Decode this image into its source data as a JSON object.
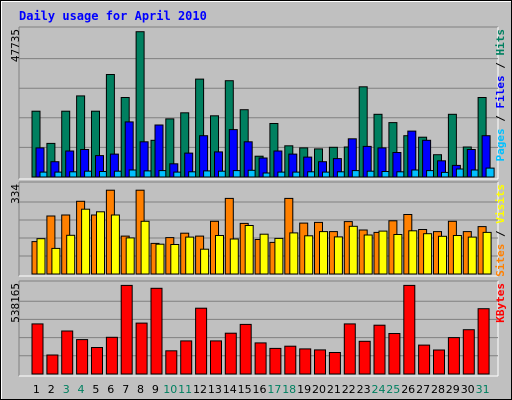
{
  "chart_data": {
    "type": "bar",
    "title": "Daily usage for April 2010",
    "days": [
      "1",
      "2",
      "3",
      "4",
      "5",
      "6",
      "7",
      "8",
      "9",
      "10",
      "11",
      "12",
      "13",
      "14",
      "15",
      "16",
      "17",
      "18",
      "19",
      "20",
      "21",
      "22",
      "23",
      "24",
      "25",
      "26",
      "27",
      "28",
      "29",
      "30",
      "31"
    ],
    "weekend_days": [
      "3",
      "4",
      "10",
      "11",
      "17",
      "18",
      "24",
      "25",
      "31"
    ],
    "panels": [
      {
        "id": "hits",
        "max_label": "47735",
        "ymax": 47735,
        "legend": [
          "Pages",
          "/",
          "Files",
          "/",
          "Hits"
        ],
        "series": [
          {
            "name": "Hits",
            "color": "#008060",
            "values": [
              21500,
              11000,
              21500,
              26500,
              21500,
              33500,
              26000,
              47500,
              12000,
              19000,
              21000,
              32000,
              20000,
              31500,
              22000,
              6800,
              17500,
              10200,
              9500,
              9200,
              9700,
              9800,
              29500,
              20500,
              17800,
              13500,
              13000,
              7300,
              20500,
              9800,
              26000
            ]
          },
          {
            "name": "Files",
            "color": "#0000ff",
            "values": [
              9500,
              5000,
              8500,
              9000,
              7000,
              7500,
              18000,
              11500,
              17000,
              4300,
              7800,
              13500,
              8200,
              15500,
              11500,
              6200,
              8500,
              7500,
              6500,
              5000,
              6000,
              12500,
              10000,
              9500,
              8000,
              15000,
              12000,
              5300,
              3800,
              9000,
              13500
            ]
          },
          {
            "name": "Pages",
            "color": "#00c0ff",
            "values": [
              1600,
              1600,
              1700,
              1900,
              1800,
              1900,
              2300,
              2000,
              2100,
              1600,
              1700,
              2000,
              1900,
              2100,
              2200,
              1300,
              1600,
              1600,
              1700,
              1600,
              1700,
              2100,
              1900,
              1800,
              1700,
              2300,
              2100,
              1500,
              2600,
              2300,
              2900
            ]
          }
        ]
      },
      {
        "id": "visits",
        "max_label": "334",
        "ymax": 334,
        "legend": [
          "Sites",
          "/",
          "Visits"
        ],
        "series": [
          {
            "name": "Visits",
            "color": "#ff8000",
            "values": [
              123,
              220,
              224,
              276,
              224,
              318,
              144,
              318,
              116,
              138,
              155,
              144,
              200,
              287,
              192,
              131,
              120,
              287,
              193,
              196,
              161,
              199,
              167,
              158,
              202,
              226,
              169,
              161,
              200,
              161,
              180
            ]
          },
          {
            "name": "Sites",
            "color": "#ffff00",
            "values": [
              134,
              97,
              147,
              246,
              236,
              224,
              137,
              200,
              113,
              112,
              140,
              94,
              146,
              133,
              184,
              151,
              135,
              156,
              145,
              161,
              141,
              181,
              148,
              163,
              150,
              164,
              153,
              143,
              146,
              140,
              158
            ]
          }
        ]
      },
      {
        "id": "kbytes",
        "max_label": "538165",
        "ymax": 538165,
        "legend": [
          "KBytes"
        ],
        "series": [
          {
            "name": "KBytes",
            "color": "#ff0000",
            "values": [
              303000,
              115000,
              260000,
              208000,
              160000,
              222000,
              536000,
              308000,
              518000,
              140000,
              200000,
              398000,
              200000,
              247000,
              300000,
              188000,
              155000,
              168000,
              152000,
              146000,
              130000,
              303000,
              198000,
              295000,
              245000,
              536000,
              175000,
              145000,
              220000,
              268000,
              395000
            ]
          }
        ]
      }
    ],
    "grid": true,
    "legend_placement": "right (rotated)"
  }
}
